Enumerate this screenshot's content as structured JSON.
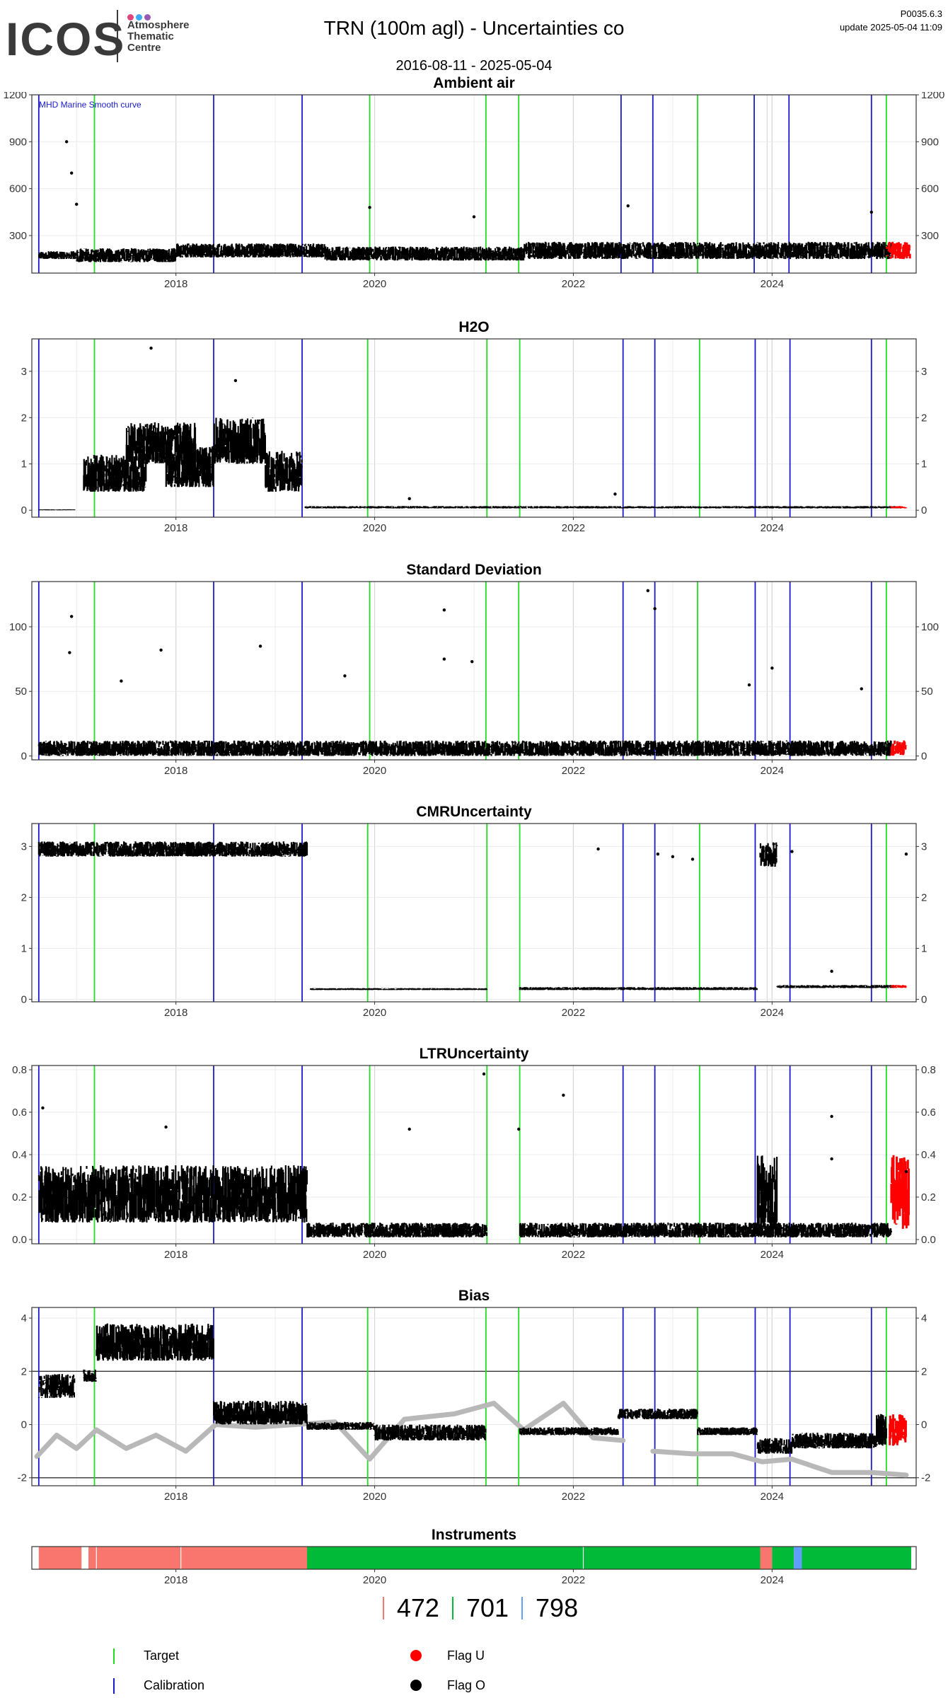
{
  "header": {
    "logo_text": "ICOS",
    "logo_sub": [
      "Atmosphere",
      "Thematic",
      "Centre"
    ],
    "logo_dot_colors": [
      "#e0457b",
      "#3fa9f5",
      "#9b59b6"
    ],
    "title": "TRN  (100m agl) - Uncertainties co",
    "version": "P0035.6.3",
    "update": "update  2025-05-04 11:09",
    "date_range": "2016-08-11 - 2025-05-04"
  },
  "colors": {
    "target": "#22dd22",
    "calibration": "#1a1acc",
    "flag_u": "#ff0000",
    "flag_o": "#000000",
    "smooth": "#b8b8b8",
    "instrument_472": "#f8766d",
    "instrument_701": "#00ba38",
    "instrument_798": "#619cff"
  },
  "shared_x": {
    "range": [
      2016.55,
      2025.45
    ],
    "ticks": [
      2018,
      2020,
      2022,
      2024
    ],
    "tick_labels": [
      "2018",
      "2020",
      "2022",
      "2024"
    ]
  },
  "chart_data": [
    {
      "type": "scatter",
      "title": "Ambient air",
      "annotation": "MHD Marine Smooth curve",
      "ylim": [
        60,
        1200
      ],
      "yticks": [
        300,
        600,
        900,
        1200
      ],
      "calibration_x": [
        2016.62,
        2018.38,
        2019.27,
        2022.48,
        2022.8,
        2023.82,
        2024.17,
        2025.0
      ],
      "target_x": [
        2017.18,
        2019.95,
        2021.12,
        2021.45,
        2023.25,
        2025.15
      ],
      "series": [
        {
          "segments": [
            [
              2016.62,
              2017.0,
              150,
              200
            ],
            [
              2017.0,
              2018.0,
              130,
              220
            ],
            [
              2018.0,
              2019.5,
              160,
              250
            ],
            [
              2019.5,
              2021.5,
              140,
              230
            ],
            [
              2021.5,
              2025.2,
              150,
              260
            ]
          ],
          "flag_u_range": [
            2025.15,
            2025.4
          ]
        },
        {
          "outliers": [
            [
              2016.9,
              900
            ],
            [
              2016.95,
              700
            ],
            [
              2017.0,
              500
            ],
            [
              2019.95,
              480
            ],
            [
              2022.55,
              490
            ],
            [
              2021.0,
              420
            ],
            [
              2025.0,
              450
            ]
          ]
        }
      ]
    },
    {
      "type": "scatter",
      "title": "H2O",
      "ylim": [
        -0.15,
        3.7
      ],
      "yticks": [
        0,
        1,
        2,
        3
      ],
      "calibration_x": [
        2016.62,
        2018.38,
        2019.27,
        2022.5,
        2022.82,
        2023.83,
        2024.18,
        2025.0
      ],
      "target_x": [
        2017.18,
        2019.93,
        2021.13,
        2021.46,
        2023.27,
        2025.15
      ],
      "series": [
        {
          "segments": [
            [
              2016.62,
              2016.98,
              0.0,
              0.02
            ],
            [
              2017.07,
              2017.7,
              0.4,
              1.2
            ],
            [
              2017.5,
              2018.2,
              1.0,
              1.9
            ],
            [
              2017.9,
              2018.38,
              0.5,
              1.4
            ],
            [
              2018.38,
              2018.9,
              1.0,
              2.0
            ],
            [
              2018.9,
              2019.27,
              0.4,
              1.3
            ],
            [
              2019.3,
              2025.3,
              0.04,
              0.09
            ]
          ],
          "flag_u_range": [
            2025.2,
            2025.35
          ]
        },
        {
          "outliers": [
            [
              2017.75,
              3.5
            ],
            [
              2018.6,
              2.8
            ],
            [
              2020.35,
              0.25
            ],
            [
              2022.42,
              0.35
            ]
          ]
        }
      ]
    },
    {
      "type": "scatter",
      "title": "Standard Deviation",
      "ylim": [
        -3,
        135
      ],
      "yticks": [
        0,
        50,
        100
      ],
      "calibration_x": [
        2016.62,
        2018.38,
        2019.27,
        2022.5,
        2022.82,
        2023.83,
        2024.18,
        2025.0
      ],
      "target_x": [
        2017.18,
        2019.95,
        2021.12,
        2021.45,
        2023.25,
        2025.15
      ],
      "series": [
        {
          "segments": [
            [
              2016.62,
              2025.2,
              0,
              12
            ]
          ],
          "flag_u_range": [
            2025.2,
            2025.35
          ]
        },
        {
          "outliers": [
            [
              2016.95,
              108
            ],
            [
              2016.93,
              80
            ],
            [
              2017.45,
              58
            ],
            [
              2017.85,
              82
            ],
            [
              2018.85,
              85
            ],
            [
              2019.7,
              62
            ],
            [
              2020.7,
              113
            ],
            [
              2020.7,
              75
            ],
            [
              2020.98,
              73
            ],
            [
              2022.75,
              128
            ],
            [
              2022.82,
              114
            ],
            [
              2023.77,
              55
            ],
            [
              2024.0,
              68
            ],
            [
              2024.9,
              52
            ]
          ]
        }
      ]
    },
    {
      "type": "scatter",
      "title": "CMRUncertainty",
      "ylim": [
        -0.05,
        3.45
      ],
      "yticks": [
        0,
        1,
        2,
        3
      ],
      "calibration_x": [
        2016.62,
        2018.38,
        2019.27,
        2022.5,
        2022.82,
        2023.83,
        2024.18,
        2025.0
      ],
      "target_x": [
        2017.18,
        2019.93,
        2021.13,
        2021.46,
        2023.27,
        2025.15
      ],
      "series": [
        {
          "segments": [
            [
              2016.62,
              2019.32,
              2.8,
              3.1
            ],
            [
              2019.35,
              2021.13,
              0.18,
              0.22
            ],
            [
              2021.46,
              2023.85,
              0.18,
              0.24
            ],
            [
              2023.88,
              2024.05,
              2.6,
              3.1
            ],
            [
              2024.05,
              2025.25,
              0.22,
              0.28
            ]
          ],
          "flag_u_range": [
            2025.2,
            2025.35
          ]
        },
        {
          "outliers": [
            [
              2022.25,
              2.95
            ],
            [
              2022.85,
              2.85
            ],
            [
              2023.0,
              2.8
            ],
            [
              2023.2,
              2.75
            ],
            [
              2024.2,
              2.9
            ],
            [
              2025.35,
              2.85
            ],
            [
              2024.6,
              0.55
            ]
          ]
        }
      ]
    },
    {
      "type": "scatter",
      "title": "LTRUncertainty",
      "ylim": [
        -0.02,
        0.82
      ],
      "yticks": [
        0.0,
        0.2,
        0.4,
        0.6,
        0.8
      ],
      "ytick_labels": [
        "0.0",
        "0.2",
        "0.4",
        "0.6",
        "0.8"
      ],
      "calibration_x": [
        2016.62,
        2018.38,
        2019.27,
        2022.5,
        2022.82,
        2023.83,
        2024.18,
        2025.0
      ],
      "target_x": [
        2017.18,
        2019.95,
        2021.13,
        2021.46,
        2023.27,
        2025.15
      ],
      "series": [
        {
          "segments": [
            [
              2016.62,
              2019.32,
              0.08,
              0.35
            ],
            [
              2019.32,
              2021.13,
              0.01,
              0.08
            ],
            [
              2021.46,
              2025.2,
              0.01,
              0.08
            ],
            [
              2023.85,
              2024.05,
              0.05,
              0.4
            ]
          ],
          "flag_u_range": [
            2025.2,
            2025.38
          ]
        },
        {
          "outliers": [
            [
              2016.66,
              0.62
            ],
            [
              2017.9,
              0.53
            ],
            [
              2020.35,
              0.52
            ],
            [
              2021.1,
              0.78
            ],
            [
              2021.45,
              0.52
            ],
            [
              2021.9,
              0.68
            ],
            [
              2024.6,
              0.58
            ],
            [
              2024.6,
              0.38
            ],
            [
              2025.35,
              0.32
            ]
          ]
        }
      ]
    },
    {
      "type": "scatter",
      "title": "Bias",
      "ylim": [
        -2.3,
        4.4
      ],
      "yticks": [
        -2,
        0,
        2,
        4
      ],
      "hlines": [
        -2,
        2
      ],
      "calibration_x": [
        2016.62,
        2018.38,
        2019.27,
        2022.5,
        2022.82,
        2023.83,
        2024.18,
        2025.0
      ],
      "target_x": [
        2017.18,
        2019.93,
        2021.12,
        2021.45,
        2023.25,
        2025.15
      ],
      "series": [
        {
          "segments": [
            [
              2016.62,
              2016.98,
              1.0,
              1.9
            ],
            [
              2017.07,
              2017.2,
              1.6,
              2.1
            ],
            [
              2017.2,
              2018.38,
              2.4,
              3.8
            ],
            [
              2018.38,
              2019.32,
              0.0,
              0.9
            ],
            [
              2019.32,
              2020.0,
              -0.2,
              0.1
            ],
            [
              2020.0,
              2021.12,
              -0.6,
              0.0
            ],
            [
              2021.46,
              2022.45,
              -0.4,
              -0.1
            ],
            [
              2022.45,
              2023.25,
              0.2,
              0.6
            ],
            [
              2023.25,
              2023.85,
              -0.4,
              -0.1
            ],
            [
              2023.85,
              2024.2,
              -1.1,
              -0.5
            ],
            [
              2024.2,
              2025.05,
              -0.9,
              -0.3
            ],
            [
              2025.05,
              2025.15,
              -0.8,
              0.4
            ]
          ],
          "flag_u_range": [
            2025.18,
            2025.35
          ]
        },
        {
          "smooth_x": [
            2016.6,
            2016.8,
            2017.0,
            2017.2,
            2017.5,
            2017.8,
            2018.1,
            2018.4,
            2018.8,
            2019.2,
            2019.6,
            2019.95,
            2020.3,
            2020.8,
            2021.2,
            2021.5,
            2021.9,
            2022.2,
            2022.5
          ],
          "smooth_y": [
            -1.2,
            -0.4,
            -0.9,
            -0.2,
            -0.9,
            -0.4,
            -1.0,
            0.0,
            -0.1,
            0.0,
            0.1,
            -1.3,
            0.2,
            0.4,
            0.8,
            -0.2,
            0.8,
            -0.5,
            -0.6
          ]
        },
        {
          "smooth_x": [
            2022.8,
            2023.2,
            2023.6,
            2023.9,
            2024.2,
            2024.6,
            2025.0,
            2025.35
          ],
          "smooth_y": [
            -1.0,
            -1.1,
            -1.1,
            -1.4,
            -1.3,
            -1.8,
            -1.8,
            -1.9
          ]
        }
      ]
    }
  ],
  "instruments": {
    "title": "Instruments",
    "bands": [
      {
        "from": 2016.62,
        "to": 2017.05,
        "color_key": "instrument_472"
      },
      {
        "from": 2017.12,
        "to": 2019.32,
        "color_key": "instrument_472"
      },
      {
        "from": 2019.32,
        "to": 2023.88,
        "color_key": "instrument_701"
      },
      {
        "from": 2023.88,
        "to": 2024.0,
        "color_key": "instrument_472"
      },
      {
        "from": 2024.0,
        "to": 2024.22,
        "color_key": "instrument_701"
      },
      {
        "from": 2024.22,
        "to": 2024.3,
        "color_key": "instrument_798"
      },
      {
        "from": 2024.3,
        "to": 2025.4,
        "color_key": "instrument_701"
      }
    ]
  },
  "instrument_counts": [
    {
      "label": "472",
      "color_key": "instrument_472"
    },
    {
      "label": "701",
      "color_key": "instrument_701"
    },
    {
      "label": "798",
      "color_key": "instrument_798"
    }
  ],
  "legend": {
    "target": "Target",
    "calibration": "Calibration",
    "flag_u": "Flag U",
    "flag_o": "Flag O"
  }
}
